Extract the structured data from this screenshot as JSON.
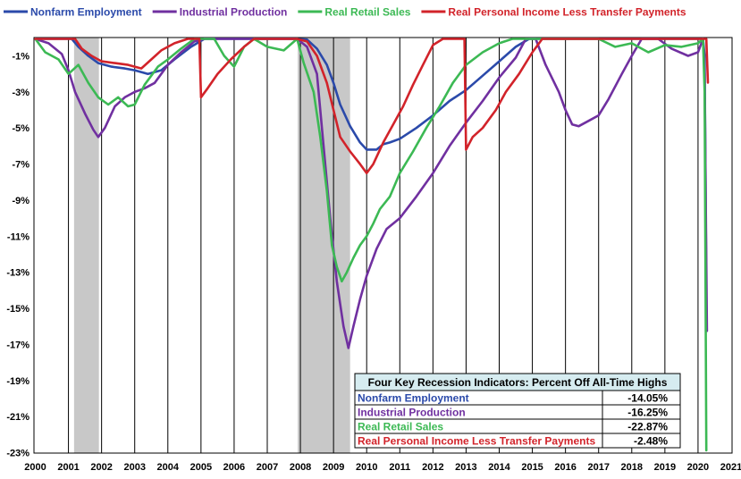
{
  "chart_data": {
    "type": "line",
    "title": "",
    "xlabel": "",
    "ylabel": "",
    "xlim": [
      2000,
      2021
    ],
    "ylim": [
      -23,
      0
    ],
    "x_ticks": [
      "2000",
      "2001",
      "2002",
      "2003",
      "2004",
      "2005",
      "2006",
      "2007",
      "2008",
      "2009",
      "2010",
      "2011",
      "2012",
      "2013",
      "2014",
      "2015",
      "2016",
      "2017",
      "2018",
      "2019",
      "2020",
      "2021"
    ],
    "y_ticks": [
      {
        "value": -1,
        "label": "-1%"
      },
      {
        "value": -3,
        "label": "-3%"
      },
      {
        "value": -5,
        "label": "-5%"
      },
      {
        "value": -7,
        "label": "-7%"
      },
      {
        "value": -9,
        "label": "-9%"
      },
      {
        "value": -11,
        "label": "-11%"
      },
      {
        "value": -13,
        "label": "-13%"
      },
      {
        "value": -15,
        "label": "-15%"
      },
      {
        "value": -17,
        "label": "-17%"
      },
      {
        "value": -19,
        "label": "-19%"
      },
      {
        "value": -21,
        "label": "-21%"
      },
      {
        "value": -23,
        "label": "-23%"
      }
    ],
    "grid": "vertical",
    "legend": "top",
    "recessions": [
      [
        2001.17,
        2001.92
      ],
      [
        2007.92,
        2009.5
      ]
    ],
    "series": [
      {
        "name": "Nonfarm Employment",
        "color": "#2b4aaa",
        "points": [
          [
            2000,
            0
          ],
          [
            2001.1,
            0
          ],
          [
            2001.3,
            -0.5
          ],
          [
            2001.6,
            -1
          ],
          [
            2001.9,
            -1.4
          ],
          [
            2002.3,
            -1.6
          ],
          [
            2002.7,
            -1.7
          ],
          [
            2003.0,
            -1.8
          ],
          [
            2003.4,
            -2
          ],
          [
            2003.8,
            -1.8
          ],
          [
            2004.2,
            -1.2
          ],
          [
            2004.7,
            -0.5
          ],
          [
            2005.1,
            0
          ],
          [
            2007.9,
            0
          ],
          [
            2008.2,
            -0.1
          ],
          [
            2008.5,
            -0.6
          ],
          [
            2008.8,
            -1.5
          ],
          [
            2009.0,
            -2.5
          ],
          [
            2009.2,
            -3.7
          ],
          [
            2009.5,
            -4.9
          ],
          [
            2009.8,
            -5.8
          ],
          [
            2010.0,
            -6.2
          ],
          [
            2010.3,
            -6.2
          ],
          [
            2010.5,
            -5.9
          ],
          [
            2010.7,
            -5.8
          ],
          [
            2011.0,
            -5.6
          ],
          [
            2011.5,
            -5
          ],
          [
            2012.0,
            -4.3
          ],
          [
            2012.5,
            -3.5
          ],
          [
            2013.0,
            -2.9
          ],
          [
            2013.5,
            -2.1
          ],
          [
            2014.0,
            -1.3
          ],
          [
            2014.5,
            -0.5
          ],
          [
            2014.9,
            0
          ],
          [
            2020.15,
            0
          ],
          [
            2020.2,
            -1
          ],
          [
            2020.25,
            -14.05
          ]
        ]
      },
      {
        "name": "Industrial Production",
        "color": "#7030a0",
        "points": [
          [
            2000,
            0
          ],
          [
            2000.4,
            -0.3
          ],
          [
            2000.8,
            -0.9
          ],
          [
            2001.0,
            -1.8
          ],
          [
            2001.2,
            -3
          ],
          [
            2001.5,
            -4.2
          ],
          [
            2001.75,
            -5.1
          ],
          [
            2001.9,
            -5.5
          ],
          [
            2002.1,
            -5
          ],
          [
            2002.4,
            -3.8
          ],
          [
            2002.7,
            -3.3
          ],
          [
            2003.0,
            -3
          ],
          [
            2003.3,
            -2.8
          ],
          [
            2003.6,
            -2.5
          ],
          [
            2004.0,
            -1.5
          ],
          [
            2004.4,
            -0.8
          ],
          [
            2004.8,
            -0.2
          ],
          [
            2005.1,
            0
          ],
          [
            2007.9,
            0
          ],
          [
            2008.2,
            -0.5
          ],
          [
            2008.5,
            -2
          ],
          [
            2008.7,
            -6
          ],
          [
            2008.9,
            -10
          ],
          [
            2009.1,
            -13.5
          ],
          [
            2009.3,
            -16
          ],
          [
            2009.45,
            -17.2
          ],
          [
            2009.6,
            -16
          ],
          [
            2009.8,
            -14.5
          ],
          [
            2010.0,
            -13.2
          ],
          [
            2010.3,
            -11.7
          ],
          [
            2010.6,
            -10.6
          ],
          [
            2011.0,
            -10
          ],
          [
            2011.5,
            -8.8
          ],
          [
            2012.0,
            -7.5
          ],
          [
            2012.5,
            -6
          ],
          [
            2013.0,
            -4.7
          ],
          [
            2013.5,
            -3.5
          ],
          [
            2014.0,
            -2.2
          ],
          [
            2014.5,
            -1.1
          ],
          [
            2014.8,
            0
          ],
          [
            2015.1,
            0
          ],
          [
            2015.4,
            -1.5
          ],
          [
            2015.8,
            -3
          ],
          [
            2016.0,
            -4
          ],
          [
            2016.2,
            -4.8
          ],
          [
            2016.4,
            -4.9
          ],
          [
            2016.7,
            -4.6
          ],
          [
            2017.0,
            -4.3
          ],
          [
            2017.3,
            -3.4
          ],
          [
            2017.7,
            -2
          ],
          [
            2018.0,
            -1
          ],
          [
            2018.3,
            0
          ],
          [
            2018.8,
            0
          ],
          [
            2019.2,
            -0.6
          ],
          [
            2019.7,
            -1
          ],
          [
            2020.0,
            -0.8
          ],
          [
            2020.15,
            0
          ],
          [
            2020.2,
            -2
          ],
          [
            2020.27,
            -16.25
          ]
        ]
      },
      {
        "name": "Real Retail Sales",
        "color": "#3cb954",
        "points": [
          [
            2000,
            0
          ],
          [
            2000.3,
            -0.8
          ],
          [
            2000.7,
            -1.2
          ],
          [
            2001.0,
            -2
          ],
          [
            2001.3,
            -1.5
          ],
          [
            2001.6,
            -2.5
          ],
          [
            2001.9,
            -3.3
          ],
          [
            2002.2,
            -3.7
          ],
          [
            2002.5,
            -3.3
          ],
          [
            2002.8,
            -3.8
          ],
          [
            2003.0,
            -3.7
          ],
          [
            2003.3,
            -2.6
          ],
          [
            2003.7,
            -1.6
          ],
          [
            2004.0,
            -1.2
          ],
          [
            2004.4,
            -0.6
          ],
          [
            2004.8,
            0
          ],
          [
            2005.4,
            0
          ],
          [
            2005.7,
            -1
          ],
          [
            2006.0,
            -1.6
          ],
          [
            2006.3,
            -0.5
          ],
          [
            2006.6,
            0
          ],
          [
            2007.0,
            -0.5
          ],
          [
            2007.5,
            -0.7
          ],
          [
            2007.9,
            0
          ],
          [
            2008.1,
            -1.4
          ],
          [
            2008.4,
            -3
          ],
          [
            2008.6,
            -5.5
          ],
          [
            2008.8,
            -8.5
          ],
          [
            2008.95,
            -11.5
          ],
          [
            2009.1,
            -12.7
          ],
          [
            2009.25,
            -13.5
          ],
          [
            2009.4,
            -13
          ],
          [
            2009.6,
            -12.2
          ],
          [
            2009.8,
            -11.5
          ],
          [
            2010.0,
            -11
          ],
          [
            2010.2,
            -10.3
          ],
          [
            2010.4,
            -9.5
          ],
          [
            2010.7,
            -8.8
          ],
          [
            2011.0,
            -7.5
          ],
          [
            2011.4,
            -6.3
          ],
          [
            2011.8,
            -5
          ],
          [
            2012.2,
            -3.8
          ],
          [
            2012.6,
            -2.5
          ],
          [
            2013.0,
            -1.5
          ],
          [
            2013.5,
            -0.8
          ],
          [
            2014.0,
            -0.3
          ],
          [
            2014.4,
            0
          ],
          [
            2017.0,
            0
          ],
          [
            2017.5,
            -0.5
          ],
          [
            2018.0,
            -0.3
          ],
          [
            2018.5,
            -0.8
          ],
          [
            2019.0,
            -0.4
          ],
          [
            2019.5,
            -0.5
          ],
          [
            2020.0,
            -0.3
          ],
          [
            2020.15,
            0
          ],
          [
            2020.2,
            -3
          ],
          [
            2020.25,
            -22.87
          ]
        ]
      },
      {
        "name": "Real Personal Income Less Transfer Payments",
        "color": "#d2232a",
        "points": [
          [
            2000,
            0
          ],
          [
            2001.2,
            0
          ],
          [
            2001.4,
            -0.6
          ],
          [
            2001.7,
            -1
          ],
          [
            2002.0,
            -1.3
          ],
          [
            2002.4,
            -1.4
          ],
          [
            2002.8,
            -1.5
          ],
          [
            2003.2,
            -1.7
          ],
          [
            2003.5,
            -1.2
          ],
          [
            2003.8,
            -0.7
          ],
          [
            2004.2,
            -0.3
          ],
          [
            2004.6,
            0
          ],
          [
            2004.95,
            0
          ],
          [
            2005.0,
            -3.3
          ],
          [
            2005.2,
            -2.8
          ],
          [
            2005.5,
            -2
          ],
          [
            2005.9,
            -1.2
          ],
          [
            2006.3,
            -0.5
          ],
          [
            2006.6,
            0
          ],
          [
            2007.9,
            0
          ],
          [
            2008.2,
            -0.2
          ],
          [
            2008.5,
            -1
          ],
          [
            2008.8,
            -2.5
          ],
          [
            2009.0,
            -4
          ],
          [
            2009.2,
            -5.5
          ],
          [
            2009.5,
            -6.3
          ],
          [
            2009.8,
            -7
          ],
          [
            2010.0,
            -7.5
          ],
          [
            2010.2,
            -7
          ],
          [
            2010.5,
            -5.8
          ],
          [
            2010.8,
            -4.8
          ],
          [
            2011.1,
            -3.8
          ],
          [
            2011.4,
            -2.6
          ],
          [
            2011.7,
            -1.5
          ],
          [
            2012.0,
            -0.4
          ],
          [
            2012.3,
            0
          ],
          [
            2012.95,
            0
          ],
          [
            2013.0,
            -6.2
          ],
          [
            2013.2,
            -5.5
          ],
          [
            2013.5,
            -5
          ],
          [
            2013.9,
            -4
          ],
          [
            2014.2,
            -3
          ],
          [
            2014.6,
            -2
          ],
          [
            2015.0,
            -0.8
          ],
          [
            2015.3,
            0
          ],
          [
            2020.25,
            0
          ],
          [
            2020.3,
            -2.48
          ]
        ]
      }
    ],
    "table": {
      "title": "Four Key Recession Indicators: Percent Off All-Time Highs",
      "rows": [
        {
          "name": "Nonfarm Employment",
          "value": "-14.05%",
          "color": "#2b4aaa"
        },
        {
          "name": "Industrial Production",
          "value": "-16.25%",
          "color": "#7030a0"
        },
        {
          "name": "Real Retail Sales",
          "value": "-22.87%",
          "color": "#3cb954"
        },
        {
          "name": "Real Personal Income Less Transfer Payments",
          "value": "-2.48%",
          "color": "#d2232a"
        }
      ]
    }
  }
}
